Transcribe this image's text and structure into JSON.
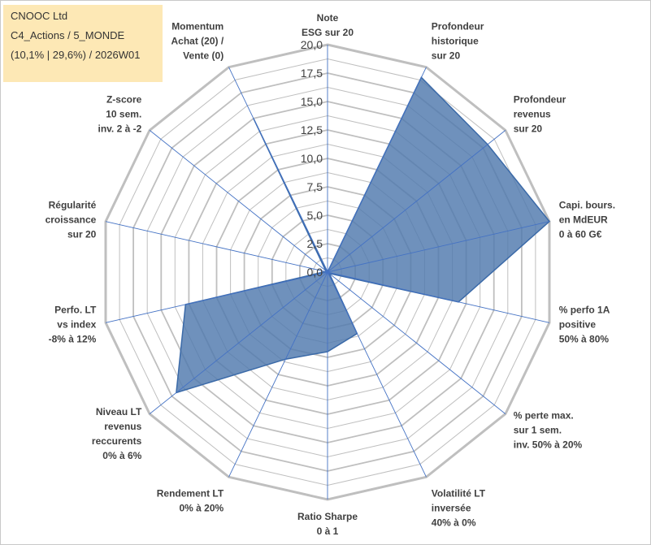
{
  "header": {
    "line1": "CNOOC Ltd",
    "line2": "C4_Actions / 5_MONDE",
    "line3": "(10,1% | 29,6%) / 2026W01"
  },
  "chart_data": {
    "type": "radar",
    "title": "CNOOC Ltd",
    "rmax": 20,
    "ticks": [
      "0,0",
      "2,5",
      "5,0",
      "7,5",
      "10,0",
      "12,5",
      "15,0",
      "17,5",
      "20,0"
    ],
    "axes": [
      {
        "label": [
          "Note",
          "ESG sur 20"
        ]
      },
      {
        "label": [
          "Profondeur",
          "historique",
          "sur 20"
        ]
      },
      {
        "label": [
          "Profondeur",
          "revenus",
          "sur 20"
        ]
      },
      {
        "label": [
          "Capi. bours.",
          "en MdEUR",
          "0 à 60 G€"
        ]
      },
      {
        "label": [
          "% perfo 1A",
          "positive",
          "50% à 80%"
        ]
      },
      {
        "label": [
          "% perte max.",
          "sur 1 sem.",
          "inv. 50% à 20%"
        ]
      },
      {
        "label": [
          "Volatilité LT",
          "inversée",
          "40% à 0%"
        ]
      },
      {
        "label": [
          "Ratio Sharpe",
          "0 à 1"
        ]
      },
      {
        "label": [
          "Rendement LT",
          "0% à 20%"
        ]
      },
      {
        "label": [
          "Niveau LT",
          "revenus",
          "reccurents",
          "0% à 6%"
        ]
      },
      {
        "label": [
          "Perfo. LT",
          "vs index",
          "-8% à 12%"
        ]
      },
      {
        "label": [
          "Régularité",
          "croissance",
          "sur 20"
        ]
      },
      {
        "label": [
          "Z-score",
          "10 sem.",
          "inv. 2 à -2"
        ]
      },
      {
        "label": [
          "Momentum",
          "Achat (20) /",
          "Vente (0)"
        ]
      }
    ],
    "series": [
      {
        "name": "CNOOC Ltd",
        "values": [
          0,
          19.0,
          18.0,
          20.0,
          11.8,
          0.2,
          6.0,
          7.0,
          8.5,
          17.0,
          12.8,
          0.2,
          0.2,
          15.0
        ],
        "color": "#4f79ad"
      }
    ],
    "colors": {
      "fill": "#4f79ad",
      "stroke": "#3b6aa8",
      "grid": "#bfbfbf",
      "spoke": "#4472c4"
    }
  }
}
